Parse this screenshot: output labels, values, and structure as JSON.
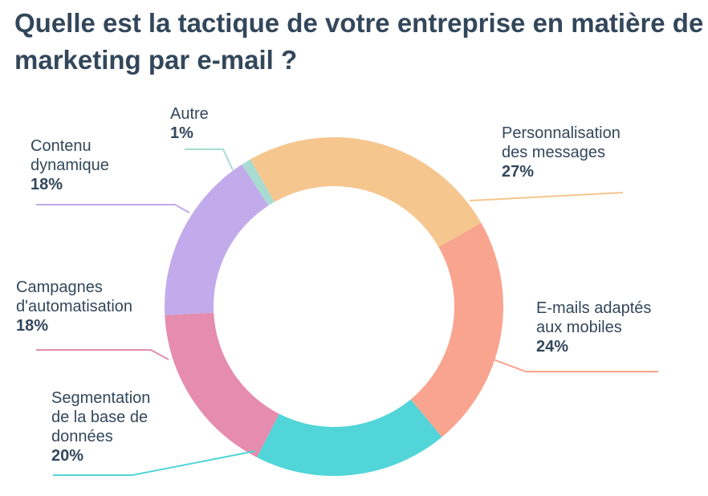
{
  "chart_data": {
    "type": "pie",
    "subtype": "donut",
    "title": "Quelle est la tactique de votre entreprise en matière de marketing par e-mail ?",
    "legend": "none",
    "slices": [
      {
        "label": "Personnalisation des messages",
        "lines": [
          "Personnalisation",
          "des messages"
        ],
        "value": 27,
        "value_label": "27%",
        "color": "#F5C68E"
      },
      {
        "label": "E-mails adaptés aux mobiles",
        "lines": [
          "E-mails adaptés",
          "aux mobiles"
        ],
        "value": 24,
        "value_label": "24%",
        "color": "#F9A48E"
      },
      {
        "label": "Segmentation de la base de données",
        "lines": [
          "Segmentation",
          "de la base de",
          "données"
        ],
        "value": 20,
        "value_label": "20%",
        "color": "#52D5D8"
      },
      {
        "label": "Campagnes d'automatisation",
        "lines": [
          "Campagnes",
          "d'automatisation"
        ],
        "value": 18,
        "value_label": "18%",
        "color": "#E68CAE"
      },
      {
        "label": "Contenu dynamique",
        "lines": [
          "Contenu",
          "dynamique"
        ],
        "value": 18,
        "value_label": "18%",
        "color": "#C2ABEB"
      },
      {
        "label": "Autre",
        "lines": [
          "Autre"
        ],
        "value": 1,
        "value_label": "1%",
        "color": "#A8DCD1"
      }
    ]
  }
}
